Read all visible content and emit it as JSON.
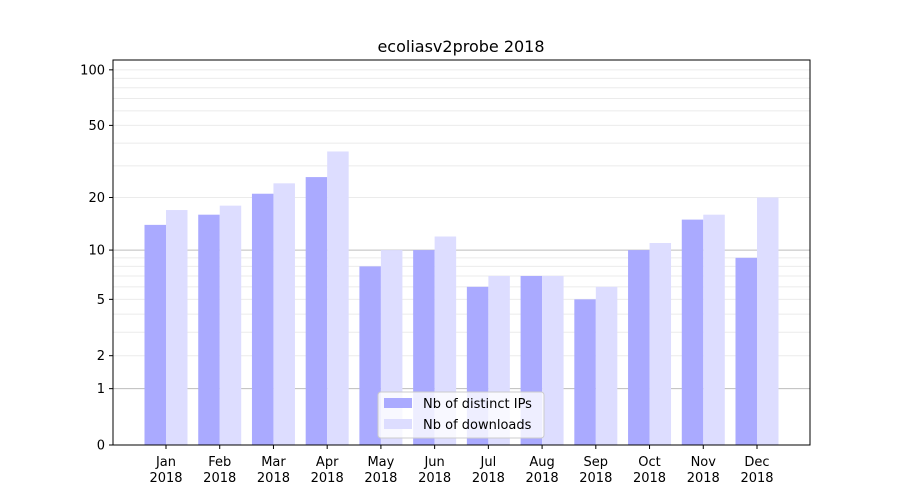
{
  "chart_data": {
    "type": "bar",
    "title": "ecoliasv2probe 2018",
    "xlabel": "",
    "ylabel": "",
    "yscale": "log(1+y)",
    "ylim": [
      0,
      113
    ],
    "yticks": [
      0,
      1,
      2,
      5,
      10,
      20,
      50,
      100
    ],
    "categories": [
      [
        "Jan",
        "2018"
      ],
      [
        "Feb",
        "2018"
      ],
      [
        "Mar",
        "2018"
      ],
      [
        "Apr",
        "2018"
      ],
      [
        "May",
        "2018"
      ],
      [
        "Jun",
        "2018"
      ],
      [
        "Jul",
        "2018"
      ],
      [
        "Aug",
        "2018"
      ],
      [
        "Sep",
        "2018"
      ],
      [
        "Oct",
        "2018"
      ],
      [
        "Nov",
        "2018"
      ],
      [
        "Dec",
        "2018"
      ]
    ],
    "series": [
      {
        "name": "Nb of distinct IPs",
        "color": "#aaaaff",
        "values": [
          14,
          16,
          21,
          26,
          8,
          10,
          6,
          7,
          5,
          10,
          15,
          9
        ]
      },
      {
        "name": "Nb of downloads",
        "color": "#ddddff",
        "values": [
          17,
          18,
          24,
          36,
          10,
          12,
          7,
          7,
          6,
          11,
          16,
          20
        ]
      }
    ],
    "grid": true,
    "legend": "bottom-center"
  }
}
